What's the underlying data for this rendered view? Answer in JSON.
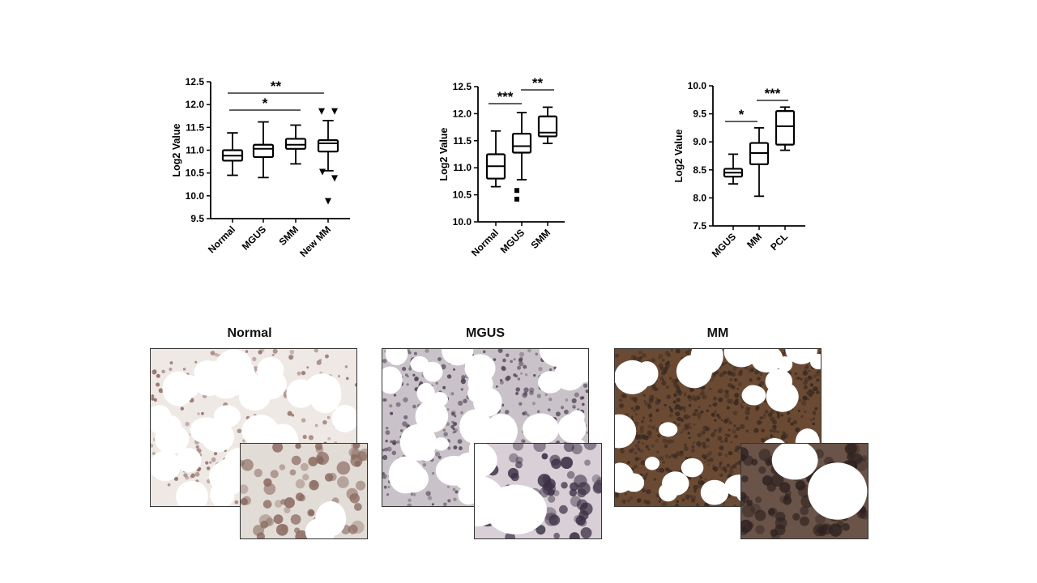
{
  "chart_data": [
    {
      "type": "box",
      "ylabel": "Log2 Value",
      "ylim": [
        9.5,
        12.5
      ],
      "yticks": [
        "9.5",
        "10.0",
        "10.5",
        "11.0",
        "11.5",
        "12.0",
        "12.5"
      ],
      "categories": [
        "Normal",
        "MGUS",
        "SMM",
        "New MM"
      ],
      "boxes": [
        {
          "min": 10.45,
          "q1": 10.77,
          "median": 10.88,
          "q3": 11.0,
          "max": 11.38,
          "outliers": []
        },
        {
          "min": 10.4,
          "q1": 10.85,
          "median": 11.03,
          "q3": 11.12,
          "max": 11.62,
          "outliers": []
        },
        {
          "min": 10.7,
          "q1": 11.03,
          "median": 11.12,
          "q3": 11.25,
          "max": 11.55,
          "outliers": []
        },
        {
          "min": 10.55,
          "q1": 10.97,
          "median": 11.15,
          "q3": 11.22,
          "max": 11.65,
          "outliers": [
            11.85,
            11.85,
            10.52,
            10.38,
            9.88
          ]
        }
      ],
      "annotations": [
        {
          "from": "Normal",
          "to": "New MM",
          "label": "**"
        },
        {
          "from": "Normal",
          "to": "SMM",
          "label": "*"
        }
      ]
    },
    {
      "type": "box",
      "ylabel": "Log2 Value",
      "ylim": [
        10.0,
        12.5
      ],
      "yticks": [
        "10.0",
        "10.5",
        "11.0",
        "11.5",
        "12.0",
        "12.5"
      ],
      "categories": [
        "Normal",
        "MGUS",
        "SMM"
      ],
      "boxes": [
        {
          "min": 10.65,
          "q1": 10.8,
          "median": 11.03,
          "q3": 11.25,
          "max": 11.68,
          "outliers": []
        },
        {
          "min": 10.78,
          "q1": 11.28,
          "median": 11.4,
          "q3": 11.63,
          "max": 12.02,
          "outliers": [
            10.58,
            10.42
          ]
        },
        {
          "min": 11.45,
          "q1": 11.58,
          "median": 11.65,
          "q3": 11.95,
          "max": 12.12,
          "outliers": []
        }
      ],
      "annotations": [
        {
          "from": "Normal",
          "to": "MGUS",
          "label": "***"
        },
        {
          "from": "MGUS",
          "to": "SMM",
          "label": "**"
        }
      ]
    },
    {
      "type": "box",
      "ylabel": "Log2 Value",
      "ylim": [
        7.5,
        10.0
      ],
      "yticks": [
        "7.5",
        "8.0",
        "8.5",
        "9.0",
        "9.5",
        "10.0"
      ],
      "categories": [
        "MGUS",
        "MM",
        "PCL"
      ],
      "boxes": [
        {
          "min": 8.25,
          "q1": 8.38,
          "median": 8.45,
          "q3": 8.52,
          "max": 8.78,
          "outliers": []
        },
        {
          "min": 8.03,
          "q1": 8.6,
          "median": 8.8,
          "q3": 8.98,
          "max": 9.25,
          "outliers": []
        },
        {
          "min": 8.85,
          "q1": 8.95,
          "median": 9.28,
          "q3": 9.55,
          "max": 9.62,
          "outliers": []
        }
      ],
      "annotations": [
        {
          "from": "MGUS",
          "to": "MM",
          "label": "*"
        },
        {
          "from": "MM",
          "to": "PCL",
          "label": "***"
        }
      ]
    }
  ],
  "panels": [
    {
      "title": "Normal",
      "base": "#efe9e6",
      "cell": "#8e6a62",
      "insetBase": "#e2dcd6",
      "insetCell": "#8a6a60"
    },
    {
      "title": "MGUS",
      "base": "#c9c2c8",
      "cell": "#4e4356",
      "insetBase": "#d8d0d6",
      "insetCell": "#3c3046"
    },
    {
      "title": "MM",
      "base": "#6b4a34",
      "cell": "#3a2a20",
      "insetBase": "#6a5348",
      "insetCell": "#2e2220"
    }
  ]
}
